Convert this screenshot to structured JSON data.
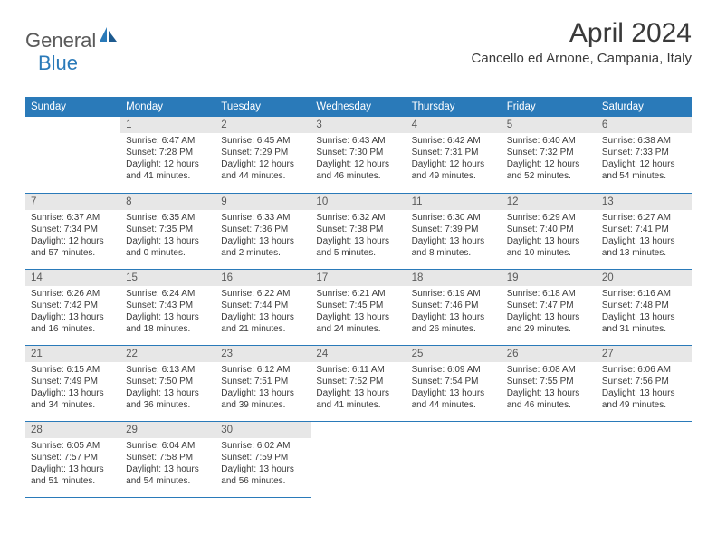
{
  "logo": {
    "general": "General",
    "blue": "Blue"
  },
  "title": "April 2024",
  "location": "Cancello ed Arnone, Campania, Italy",
  "colors": {
    "header_bg": "#2a7ab9",
    "header_text": "#ffffff",
    "daynum_bg": "#e7e7e7",
    "daynum_text": "#5a5a5a",
    "body_text": "#3a3a3a",
    "border": "#2a7ab9"
  },
  "dayNames": [
    "Sunday",
    "Monday",
    "Tuesday",
    "Wednesday",
    "Thursday",
    "Friday",
    "Saturday"
  ],
  "weeks": [
    [
      null,
      {
        "n": "1",
        "sr": "6:47 AM",
        "ss": "7:28 PM",
        "dl": "12 hours and 41 minutes."
      },
      {
        "n": "2",
        "sr": "6:45 AM",
        "ss": "7:29 PM",
        "dl": "12 hours and 44 minutes."
      },
      {
        "n": "3",
        "sr": "6:43 AM",
        "ss": "7:30 PM",
        "dl": "12 hours and 46 minutes."
      },
      {
        "n": "4",
        "sr": "6:42 AM",
        "ss": "7:31 PM",
        "dl": "12 hours and 49 minutes."
      },
      {
        "n": "5",
        "sr": "6:40 AM",
        "ss": "7:32 PM",
        "dl": "12 hours and 52 minutes."
      },
      {
        "n": "6",
        "sr": "6:38 AM",
        "ss": "7:33 PM",
        "dl": "12 hours and 54 minutes."
      }
    ],
    [
      {
        "n": "7",
        "sr": "6:37 AM",
        "ss": "7:34 PM",
        "dl": "12 hours and 57 minutes."
      },
      {
        "n": "8",
        "sr": "6:35 AM",
        "ss": "7:35 PM",
        "dl": "13 hours and 0 minutes."
      },
      {
        "n": "9",
        "sr": "6:33 AM",
        "ss": "7:36 PM",
        "dl": "13 hours and 2 minutes."
      },
      {
        "n": "10",
        "sr": "6:32 AM",
        "ss": "7:38 PM",
        "dl": "13 hours and 5 minutes."
      },
      {
        "n": "11",
        "sr": "6:30 AM",
        "ss": "7:39 PM",
        "dl": "13 hours and 8 minutes."
      },
      {
        "n": "12",
        "sr": "6:29 AM",
        "ss": "7:40 PM",
        "dl": "13 hours and 10 minutes."
      },
      {
        "n": "13",
        "sr": "6:27 AM",
        "ss": "7:41 PM",
        "dl": "13 hours and 13 minutes."
      }
    ],
    [
      {
        "n": "14",
        "sr": "6:26 AM",
        "ss": "7:42 PM",
        "dl": "13 hours and 16 minutes."
      },
      {
        "n": "15",
        "sr": "6:24 AM",
        "ss": "7:43 PM",
        "dl": "13 hours and 18 minutes."
      },
      {
        "n": "16",
        "sr": "6:22 AM",
        "ss": "7:44 PM",
        "dl": "13 hours and 21 minutes."
      },
      {
        "n": "17",
        "sr": "6:21 AM",
        "ss": "7:45 PM",
        "dl": "13 hours and 24 minutes."
      },
      {
        "n": "18",
        "sr": "6:19 AM",
        "ss": "7:46 PM",
        "dl": "13 hours and 26 minutes."
      },
      {
        "n": "19",
        "sr": "6:18 AM",
        "ss": "7:47 PM",
        "dl": "13 hours and 29 minutes."
      },
      {
        "n": "20",
        "sr": "6:16 AM",
        "ss": "7:48 PM",
        "dl": "13 hours and 31 minutes."
      }
    ],
    [
      {
        "n": "21",
        "sr": "6:15 AM",
        "ss": "7:49 PM",
        "dl": "13 hours and 34 minutes."
      },
      {
        "n": "22",
        "sr": "6:13 AM",
        "ss": "7:50 PM",
        "dl": "13 hours and 36 minutes."
      },
      {
        "n": "23",
        "sr": "6:12 AM",
        "ss": "7:51 PM",
        "dl": "13 hours and 39 minutes."
      },
      {
        "n": "24",
        "sr": "6:11 AM",
        "ss": "7:52 PM",
        "dl": "13 hours and 41 minutes."
      },
      {
        "n": "25",
        "sr": "6:09 AM",
        "ss": "7:54 PM",
        "dl": "13 hours and 44 minutes."
      },
      {
        "n": "26",
        "sr": "6:08 AM",
        "ss": "7:55 PM",
        "dl": "13 hours and 46 minutes."
      },
      {
        "n": "27",
        "sr": "6:06 AM",
        "ss": "7:56 PM",
        "dl": "13 hours and 49 minutes."
      }
    ],
    [
      {
        "n": "28",
        "sr": "6:05 AM",
        "ss": "7:57 PM",
        "dl": "13 hours and 51 minutes."
      },
      {
        "n": "29",
        "sr": "6:04 AM",
        "ss": "7:58 PM",
        "dl": "13 hours and 54 minutes."
      },
      {
        "n": "30",
        "sr": "6:02 AM",
        "ss": "7:59 PM",
        "dl": "13 hours and 56 minutes."
      },
      null,
      null,
      null,
      null
    ]
  ],
  "labels": {
    "sunrise": "Sunrise:",
    "sunset": "Sunset:",
    "daylight": "Daylight:"
  }
}
